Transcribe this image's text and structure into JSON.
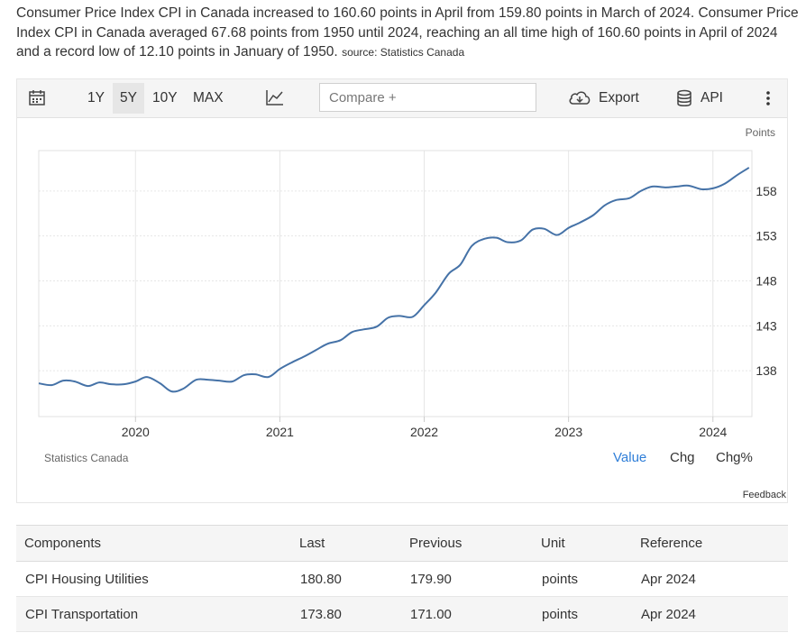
{
  "intro": {
    "text": "Consumer Price Index CPI in Canada increased to 160.60 points in April from 159.80 points in March of 2024. Consumer Price Index CPI in Canada averaged 67.68 points from 1950 until 2024, reaching an all time high of 160.60 points in April of 2024 and a record low of 12.10 points in January of 1950.",
    "source": "source: Statistics Canada"
  },
  "toolbar": {
    "ranges": [
      "1Y",
      "5Y",
      "10Y",
      "MAX"
    ],
    "selected_range": "5Y",
    "compare_placeholder": "Compare +",
    "export_label": "Export",
    "api_label": "API",
    "icons": [
      "calendar-icon",
      "line-chart-icon",
      "cloud-download-icon",
      "database-icon",
      "more-vertical-icon"
    ]
  },
  "chart_data": {
    "type": "line",
    "ylabel": "Points",
    "yticks": [
      138,
      143,
      148,
      153,
      158
    ],
    "ylim": [
      132.9,
      162.5
    ],
    "xticks": [
      "2020",
      "2021",
      "2022",
      "2023",
      "2024"
    ],
    "xlim": [
      2019.33,
      2024.27
    ],
    "grid": true,
    "line_color": "#4572a7",
    "source_label": "Statistics Canada",
    "series": [
      {
        "x": [
          2019.33,
          2019.42,
          2019.5,
          2019.58,
          2019.67,
          2019.75,
          2019.83,
          2019.92,
          2020.0,
          2020.08,
          2020.17,
          2020.25,
          2020.33,
          2020.42,
          2020.5,
          2020.58,
          2020.67,
          2020.75,
          2020.83,
          2020.92,
          2021.0,
          2021.08,
          2021.17,
          2021.25,
          2021.33,
          2021.42,
          2021.5,
          2021.58,
          2021.67,
          2021.75,
          2021.83,
          2021.92,
          2022.0,
          2022.08,
          2022.17,
          2022.25,
          2022.33,
          2022.42,
          2022.5,
          2022.58,
          2022.67,
          2022.75,
          2022.83,
          2022.92,
          2023.0,
          2023.08,
          2023.17,
          2023.25,
          2023.33,
          2023.42,
          2023.5,
          2023.58,
          2023.67,
          2023.75,
          2023.83,
          2023.92,
          2024.0,
          2024.08,
          2024.17,
          2024.25
        ],
        "values": [
          136.6,
          136.4,
          136.9,
          136.8,
          136.3,
          136.7,
          136.5,
          136.5,
          136.8,
          137.3,
          136.6,
          135.7,
          136.0,
          137.0,
          137.0,
          136.9,
          136.8,
          137.5,
          137.6,
          137.3,
          138.2,
          138.9,
          139.6,
          140.3,
          141.0,
          141.4,
          142.3,
          142.6,
          142.9,
          143.9,
          144.1,
          144.0,
          145.3,
          146.7,
          148.8,
          149.8,
          151.9,
          152.7,
          152.8,
          152.3,
          152.5,
          153.7,
          153.8,
          153.1,
          153.9,
          154.5,
          155.3,
          156.4,
          157.0,
          157.2,
          158.0,
          158.5,
          158.4,
          158.5,
          158.6,
          158.2,
          158.3,
          158.8,
          159.8,
          160.6
        ]
      }
    ]
  },
  "value_modes": [
    "Value",
    "Chg",
    "Chg%"
  ],
  "active_mode": "Value",
  "feedback_label": "Feedback",
  "components_table": {
    "headers": [
      "Components",
      "Last",
      "Previous",
      "Unit",
      "Reference"
    ],
    "rows": [
      [
        "CPI Housing Utilities",
        "180.80",
        "179.90",
        "points",
        "Apr 2024"
      ],
      [
        "CPI Transportation",
        "173.80",
        "171.00",
        "points",
        "Apr 2024"
      ]
    ]
  }
}
